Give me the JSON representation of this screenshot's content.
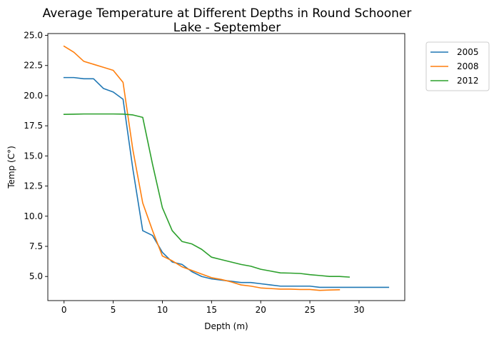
{
  "chart_data": {
    "type": "line",
    "title_lines": [
      "Average Temperature at Different Depths in Round Schooner",
      "Lake - September"
    ],
    "xlabel": "Depth (m)",
    "ylabel": "Temp (C°)",
    "xlim": [
      -1.65,
      34.65
    ],
    "ylim": [
      3.0,
      25.15
    ],
    "xticks": [
      0,
      5,
      10,
      15,
      20,
      25,
      30
    ],
    "xtick_labels": [
      "0",
      "5",
      "10",
      "15",
      "20",
      "25",
      "30"
    ],
    "yticks": [
      5.0,
      7.5,
      10.0,
      12.5,
      15.0,
      17.5,
      20.0,
      22.5,
      25.0
    ],
    "ytick_labels": [
      "5.0",
      "7.5",
      "10.0",
      "12.5",
      "15.0",
      "17.5",
      "20.0",
      "22.5",
      "25.0"
    ],
    "grid": false,
    "legend_position": "outside-top-right",
    "series": [
      {
        "name": "2005",
        "color": "#1f77b4",
        "x": [
          0,
          1,
          2,
          3,
          4,
          5,
          6,
          7,
          8,
          9,
          10,
          11,
          12,
          13,
          14,
          15,
          16,
          17,
          18,
          19,
          20,
          21,
          22,
          23,
          24,
          25,
          26,
          27,
          28,
          29,
          30,
          31,
          32,
          33
        ],
        "y": [
          21.5,
          21.5,
          21.4,
          21.4,
          20.6,
          20.3,
          19.7,
          13.9,
          8.8,
          8.4,
          7.0,
          6.2,
          6.0,
          5.4,
          5.0,
          4.8,
          4.7,
          4.6,
          4.5,
          4.5,
          4.4,
          4.3,
          4.2,
          4.2,
          4.2,
          4.2,
          4.1,
          4.1,
          4.1,
          4.1,
          4.1,
          4.1,
          4.1,
          4.1
        ]
      },
      {
        "name": "2008",
        "color": "#ff7f0e",
        "x": [
          0,
          1,
          2,
          3,
          4,
          5,
          6,
          7,
          8,
          9,
          10,
          11,
          12,
          13,
          14,
          15,
          16,
          17,
          18,
          19,
          20,
          21,
          22,
          23,
          24,
          25,
          26,
          27,
          28
        ],
        "y": [
          24.1,
          23.6,
          22.85,
          22.6,
          22.35,
          22.1,
          21.1,
          15.5,
          11.1,
          8.8,
          6.7,
          6.3,
          5.8,
          5.5,
          5.2,
          4.9,
          4.75,
          4.55,
          4.3,
          4.2,
          4.05,
          4.0,
          3.95,
          3.95,
          3.92,
          3.92,
          3.85,
          3.88,
          3.9
        ]
      },
      {
        "name": "2012",
        "color": "#2ca02c",
        "x": [
          0,
          1,
          2,
          3,
          4,
          5,
          6,
          7,
          8,
          9,
          10,
          11,
          12,
          13,
          14,
          15,
          16,
          17,
          18,
          19,
          20,
          21,
          22,
          23,
          24,
          25,
          26,
          27,
          28,
          29
        ],
        "y": [
          18.45,
          18.46,
          18.48,
          18.48,
          18.48,
          18.48,
          18.47,
          18.4,
          18.2,
          14.3,
          10.7,
          8.8,
          7.9,
          7.7,
          7.25,
          6.6,
          6.4,
          6.2,
          6.0,
          5.85,
          5.6,
          5.45,
          5.3,
          5.28,
          5.25,
          5.15,
          5.08,
          5.0,
          5.0,
          4.95
        ]
      }
    ]
  }
}
